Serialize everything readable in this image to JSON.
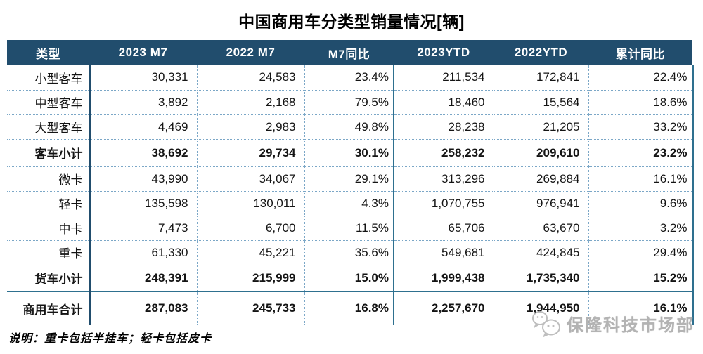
{
  "page": {
    "title": "中国商用车分类型销量情况[辆]",
    "note": "说明：重卡包括半挂车；轻卡包括皮卡"
  },
  "watermark": {
    "icon": "wechat-logo-icon",
    "label": "保隆科技市场部"
  },
  "colors": {
    "header_bg": "#214d6d",
    "header_text": "#ffffff",
    "solid_border": "#2e708f",
    "dotted_border": "#7ba7c7",
    "label_divider": "#214d6d",
    "body_text": "#141414",
    "watermark_text": "#ababab"
  },
  "chart_data": {
    "type": "table",
    "title": "中国商用车分类型销量情况[辆]",
    "columns": [
      "类型",
      "2023 M7",
      "2022 M7",
      "M7同比",
      "2023YTD",
      "2022YTD",
      "累计同比"
    ],
    "rows": [
      {
        "label": "小型客车",
        "bold": false,
        "values": [
          "30,331",
          "24,583",
          "23.4%",
          "211,534",
          "172,841",
          "22.4%"
        ]
      },
      {
        "label": "中型客车",
        "bold": false,
        "values": [
          "3,892",
          "2,168",
          "79.5%",
          "18,460",
          "15,564",
          "18.6%"
        ]
      },
      {
        "label": "大型客车",
        "bold": false,
        "values": [
          "4,469",
          "2,983",
          "49.8%",
          "28,238",
          "21,205",
          "33.2%"
        ]
      },
      {
        "label": "客车小计",
        "bold": true,
        "values": [
          "38,692",
          "29,734",
          "30.1%",
          "258,232",
          "209,610",
          "23.2%"
        ]
      },
      {
        "label": "微卡",
        "bold": false,
        "values": [
          "43,990",
          "34,067",
          "29.1%",
          "313,296",
          "269,884",
          "16.1%"
        ]
      },
      {
        "label": "轻卡",
        "bold": false,
        "values": [
          "135,598",
          "130,011",
          "4.3%",
          "1,070,755",
          "976,941",
          "9.6%"
        ]
      },
      {
        "label": "中卡",
        "bold": false,
        "values": [
          "7,473",
          "6,700",
          "11.5%",
          "65,706",
          "63,670",
          "3.2%"
        ]
      },
      {
        "label": "重卡",
        "bold": false,
        "values": [
          "61,330",
          "45,221",
          "35.6%",
          "549,681",
          "424,845",
          "29.4%"
        ]
      },
      {
        "label": "货车小计",
        "bold": true,
        "values": [
          "248,391",
          "215,999",
          "15.0%",
          "1,999,438",
          "1,735,340",
          "15.2%"
        ]
      },
      {
        "label": "商用车合计",
        "bold": true,
        "values": [
          "287,083",
          "245,733",
          "16.8%",
          "2,257,670",
          "1,944,950",
          "16.1%"
        ]
      }
    ]
  }
}
